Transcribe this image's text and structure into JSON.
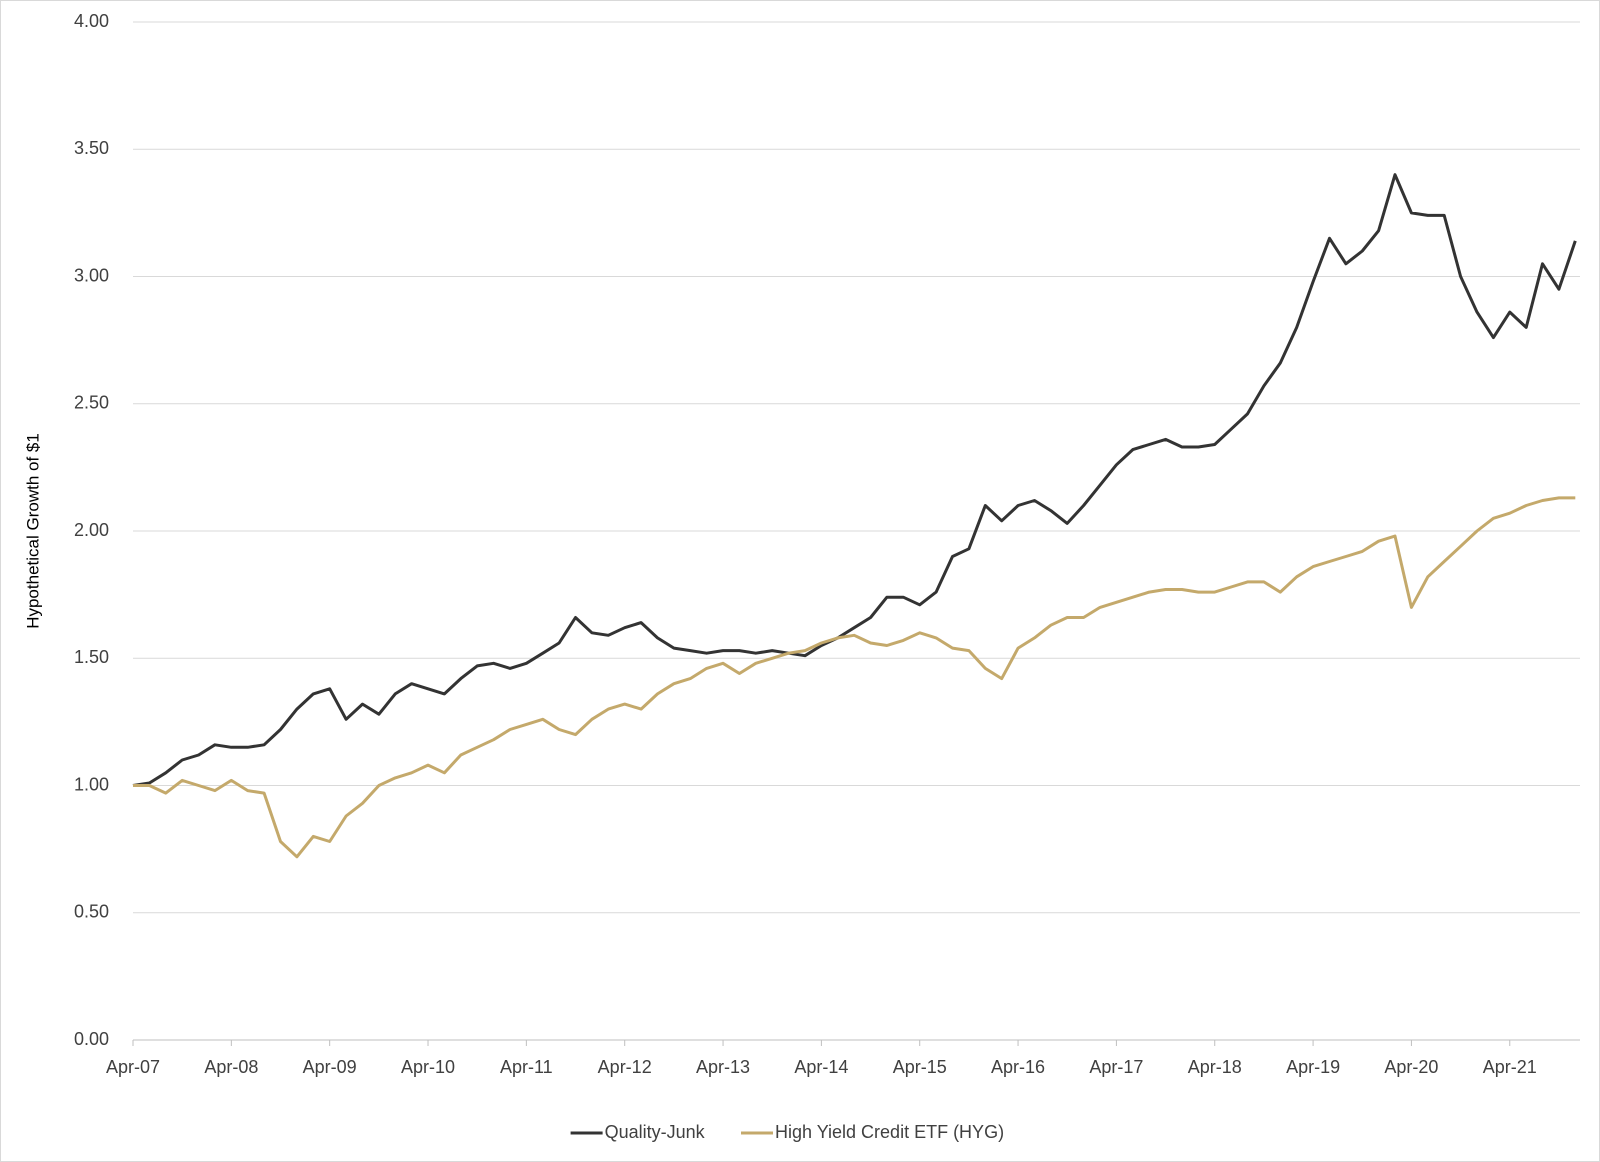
{
  "chart_data": {
    "type": "line",
    "y_label": "Hypothetical Growth of $1",
    "categories": [
      "Apr-07",
      null,
      null,
      null,
      null,
      null,
      "Apr-08",
      null,
      null,
      null,
      null,
      null,
      "Apr-09",
      null,
      null,
      null,
      null,
      null,
      "Apr-10",
      null,
      null,
      null,
      null,
      null,
      "Apr-11",
      null,
      null,
      null,
      null,
      null,
      "Apr-12",
      null,
      null,
      null,
      null,
      null,
      "Apr-13",
      null,
      null,
      null,
      null,
      null,
      "Apr-14",
      null,
      null,
      null,
      null,
      null,
      "Apr-15",
      null,
      null,
      null,
      null,
      null,
      "Apr-16",
      null,
      null,
      null,
      null,
      null,
      "Apr-17",
      null,
      null,
      null,
      null,
      null,
      "Apr-18",
      null,
      null,
      null,
      null,
      null,
      "Apr-19",
      null,
      null,
      null,
      null,
      null,
      "Apr-20",
      null,
      null,
      null,
      null,
      null,
      "Apr-21",
      null,
      null,
      null,
      null
    ],
    "series": [
      {
        "name": "Quality-Junk",
        "color": "#333333",
        "values": [
          1.0,
          1.01,
          1.05,
          1.1,
          1.12,
          1.16,
          1.15,
          1.15,
          1.16,
          1.22,
          1.3,
          1.36,
          1.38,
          1.26,
          1.32,
          1.28,
          1.36,
          1.4,
          1.38,
          1.36,
          1.42,
          1.47,
          1.48,
          1.46,
          1.48,
          1.52,
          1.56,
          1.66,
          1.6,
          1.59,
          1.62,
          1.64,
          1.58,
          1.54,
          1.53,
          1.52,
          1.53,
          1.53,
          1.52,
          1.53,
          1.52,
          1.51,
          1.55,
          1.58,
          1.62,
          1.66,
          1.74,
          1.74,
          1.71,
          1.76,
          1.9,
          1.93,
          2.1,
          2.04,
          2.1,
          2.12,
          2.08,
          2.03,
          2.1,
          2.18,
          2.26,
          2.32,
          2.34,
          2.36,
          2.33,
          2.33,
          2.34,
          2.4,
          2.46,
          2.57,
          2.66,
          2.8,
          2.98,
          3.15,
          3.05,
          3.1,
          3.18,
          3.4,
          3.25,
          3.24,
          3.24,
          3.0,
          2.86,
          2.76,
          2.86,
          2.8,
          3.05,
          2.95,
          3.14
        ]
      },
      {
        "name": "High Yield Credit ETF (HYG)",
        "color": "#c4a96b",
        "values": [
          1.0,
          1.0,
          0.97,
          1.02,
          1.0,
          0.98,
          1.02,
          0.98,
          0.97,
          0.78,
          0.72,
          0.8,
          0.78,
          0.88,
          0.93,
          1.0,
          1.03,
          1.05,
          1.08,
          1.05,
          1.12,
          1.15,
          1.18,
          1.22,
          1.24,
          1.26,
          1.22,
          1.2,
          1.26,
          1.3,
          1.32,
          1.3,
          1.36,
          1.4,
          1.42,
          1.46,
          1.48,
          1.44,
          1.48,
          1.5,
          1.52,
          1.53,
          1.56,
          1.58,
          1.59,
          1.56,
          1.55,
          1.57,
          1.6,
          1.58,
          1.54,
          1.53,
          1.46,
          1.42,
          1.54,
          1.58,
          1.63,
          1.66,
          1.66,
          1.7,
          1.72,
          1.74,
          1.76,
          1.77,
          1.77,
          1.76,
          1.76,
          1.78,
          1.8,
          1.8,
          1.76,
          1.82,
          1.86,
          1.88,
          1.9,
          1.92,
          1.96,
          1.98,
          1.7,
          1.82,
          1.88,
          1.94,
          2.0,
          2.05,
          2.07,
          2.1,
          2.12,
          2.13,
          2.13
        ]
      }
    ],
    "ylim": [
      0,
      4
    ],
    "yticks": [
      {
        "value": 0,
        "label": "0.00"
      },
      {
        "value": 0.5,
        "label": "0.50"
      },
      {
        "value": 1,
        "label": "1.00"
      },
      {
        "value": 1.5,
        "label": "1.50"
      },
      {
        "value": 2,
        "label": "2.00"
      },
      {
        "value": 2.5,
        "label": "2.50"
      },
      {
        "value": 3,
        "label": "3.00"
      },
      {
        "value": 3.5,
        "label": "3.50"
      },
      {
        "value": 4,
        "label": "4.00"
      }
    ],
    "grid": true,
    "legend": "bottom"
  }
}
